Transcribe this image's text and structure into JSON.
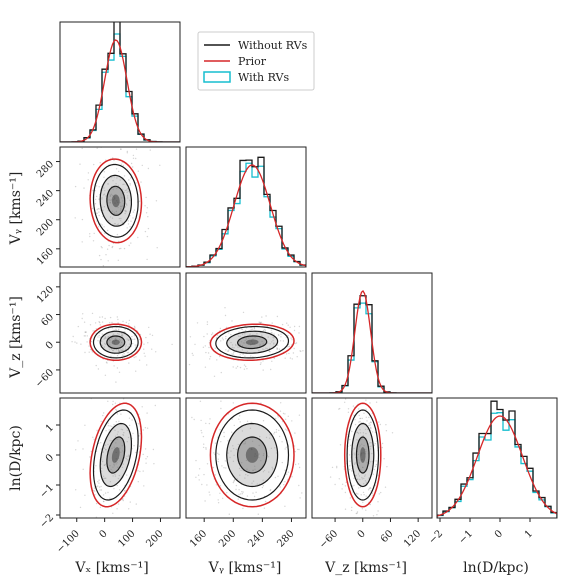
{
  "chart_data": {
    "type": "corner",
    "variables": [
      {
        "label": "Vₓ [kms⁻¹]",
        "range": [
          -160,
          270
        ],
        "ticks": [
          -100,
          0,
          100,
          200
        ],
        "tick_labels": [
          "−100",
          "0",
          "100",
          "200"
        ]
      },
      {
        "label": "Vᵧ [kms⁻¹]",
        "range": [
          135,
          300
        ],
        "ticks": [
          160,
          200,
          240,
          280
        ],
        "tick_labels": [
          "160",
          "200",
          "240",
          "280"
        ]
      },
      {
        "label": "V_z [kms⁻¹]",
        "range": [
          -110,
          150
        ],
        "ticks": [
          -60,
          0,
          60,
          120
        ],
        "tick_labels": [
          "−60",
          "0",
          "60",
          "120"
        ]
      },
      {
        "label": "ln(D/kpc)",
        "range": [
          -2.1,
          1.9
        ],
        "ticks": [
          -2,
          -1,
          0,
          1
        ],
        "tick_labels": [
          "−2",
          "−1",
          "0",
          "1"
        ]
      }
    ],
    "legend": {
      "position": "top-center",
      "entries": [
        {
          "label": "Without RVs",
          "color": "#1a1a1a",
          "style": "line"
        },
        {
          "label": "Prior",
          "color": "#d62728",
          "style": "line"
        },
        {
          "label": "With RVs",
          "color": "#17becf",
          "style": "box"
        }
      ]
    },
    "marginals": {
      "model": [
        {
          "mean": 40,
          "sd": 40
        },
        {
          "mean": 226,
          "sd": 25
        },
        {
          "mean": 0,
          "sd": 17
        },
        {
          "mean": 0,
          "sd": 0.75
        }
      ]
    },
    "correlations": {
      "1-0": -0.05,
      "2-0": 0.0,
      "2-1": 0.08,
      "3-0": 0.35,
      "3-1": 0.0,
      "3-2": 0.0
    },
    "colors": {
      "without_rvs": "#1a1a1a",
      "prior": "#d62728",
      "with_rvs": "#17becf",
      "points": "#888888",
      "density": "#000000"
    }
  }
}
